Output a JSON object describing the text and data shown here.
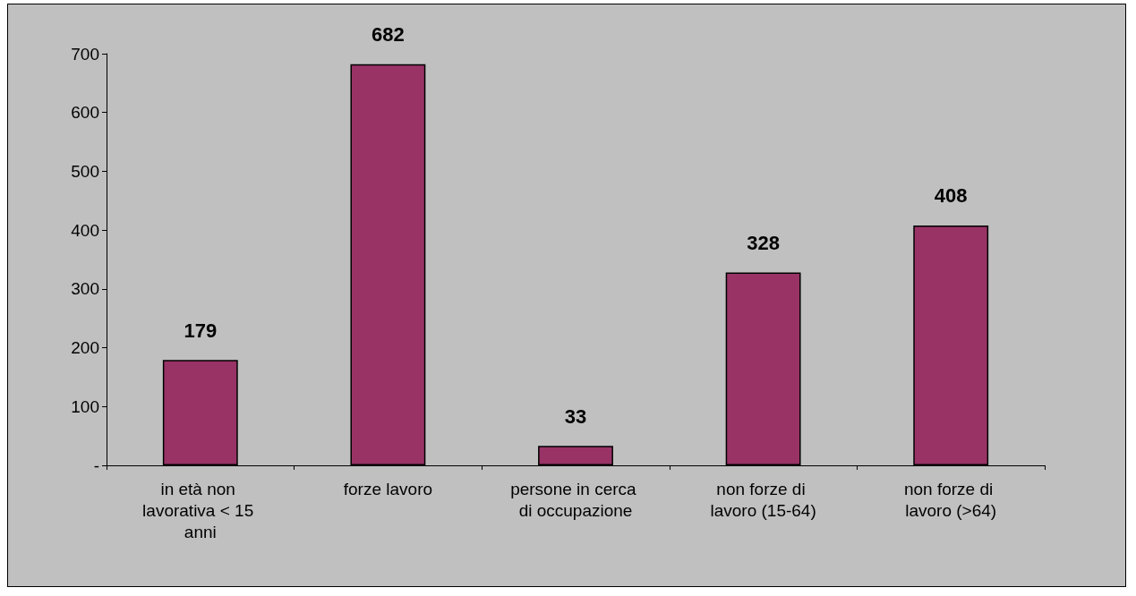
{
  "chart_data": {
    "type": "bar",
    "categories": [
      "in età non lavorativa < 15 anni",
      "forze lavoro",
      "persone in cerca di occupazione",
      "non forze di lavoro (15-64)",
      "non forze di lavoro (>64)"
    ],
    "values": [
      179,
      682,
      33,
      328,
      408
    ],
    "color": "#993366",
    "ylim": [
      0,
      700
    ],
    "yticks": [
      {
        "value": 0,
        "label": "-"
      },
      100,
      200,
      300,
      400,
      500,
      600,
      700
    ],
    "data_labels": true
  }
}
